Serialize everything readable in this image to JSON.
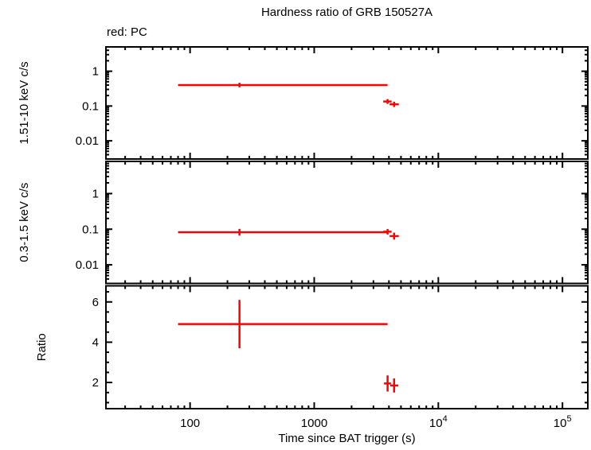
{
  "chart_data": {
    "type": "scatter",
    "title": "Hardness ratio of GRB 150527A",
    "legend": {
      "label": "red: PC",
      "mode": "PC",
      "color": "#ff0000",
      "position": "top-left"
    },
    "xlabel": "Time since BAT trigger (s)",
    "xscale": "log",
    "xlim": [
      21,
      160000
    ],
    "xticks": [
      {
        "value": 100,
        "label": "100"
      },
      {
        "value": 1000,
        "label": "1000"
      },
      {
        "value": 10000,
        "label": "10",
        "sup": "4"
      },
      {
        "value": 100000,
        "label": "10",
        "sup": "5"
      }
    ],
    "grid": false,
    "panels": [
      {
        "name": "hard-band-count-rate",
        "ylabel": "1.51-10 keV c/s",
        "yscale": "log",
        "ylim": [
          0.003,
          5
        ],
        "yticks": [
          {
            "value": 1,
            "label": "1"
          },
          {
            "value": 0.1,
            "label": "0.1"
          },
          {
            "value": 0.01,
            "label": "0.01"
          }
        ],
        "points": [
          {
            "x": 250,
            "xlo": 80,
            "xhi": 3900,
            "y": 0.4,
            "ylo": 0.345,
            "yhi": 0.465
          },
          {
            "x": 3900,
            "xlo": 3600,
            "xhi": 4200,
            "y": 0.135,
            "ylo": 0.115,
            "yhi": 0.158
          },
          {
            "x": 4400,
            "xlo": 4050,
            "xhi": 4800,
            "y": 0.112,
            "ylo": 0.094,
            "yhi": 0.133
          }
        ]
      },
      {
        "name": "soft-band-count-rate",
        "ylabel": "0.3-1.5 keV c/s",
        "yscale": "log",
        "ylim": [
          0.003,
          8
        ],
        "yticks": [
          {
            "value": 1,
            "label": "1"
          },
          {
            "value": 0.1,
            "label": "0.1"
          },
          {
            "value": 0.01,
            "label": "0.01"
          }
        ],
        "points": [
          {
            "x": 250,
            "xlo": 80,
            "xhi": 3900,
            "y": 0.082,
            "ylo": 0.066,
            "yhi": 0.102
          },
          {
            "x": 3900,
            "xlo": 3600,
            "xhi": 4200,
            "y": 0.085,
            "ylo": 0.071,
            "yhi": 0.101
          },
          {
            "x": 4400,
            "xlo": 4050,
            "xhi": 4800,
            "y": 0.064,
            "ylo": 0.051,
            "yhi": 0.08
          }
        ]
      },
      {
        "name": "hardness-ratio",
        "ylabel": "Ratio",
        "yscale": "linear",
        "ylim": [
          0.7,
          6.8
        ],
        "yticks": [
          {
            "value": 2,
            "label": "2"
          },
          {
            "value": 4,
            "label": "4"
          },
          {
            "value": 6,
            "label": "6"
          }
        ],
        "points": [
          {
            "x": 250,
            "xlo": 80,
            "xhi": 3900,
            "y": 4.9,
            "ylo": 3.7,
            "yhi": 6.1
          },
          {
            "x": 3900,
            "xlo": 3650,
            "xhi": 4150,
            "y": 1.95,
            "ylo": 1.55,
            "yhi": 2.35
          },
          {
            "x": 4400,
            "xlo": 4100,
            "xhi": 4750,
            "y": 1.85,
            "ylo": 1.5,
            "yhi": 2.2
          }
        ]
      }
    ]
  }
}
